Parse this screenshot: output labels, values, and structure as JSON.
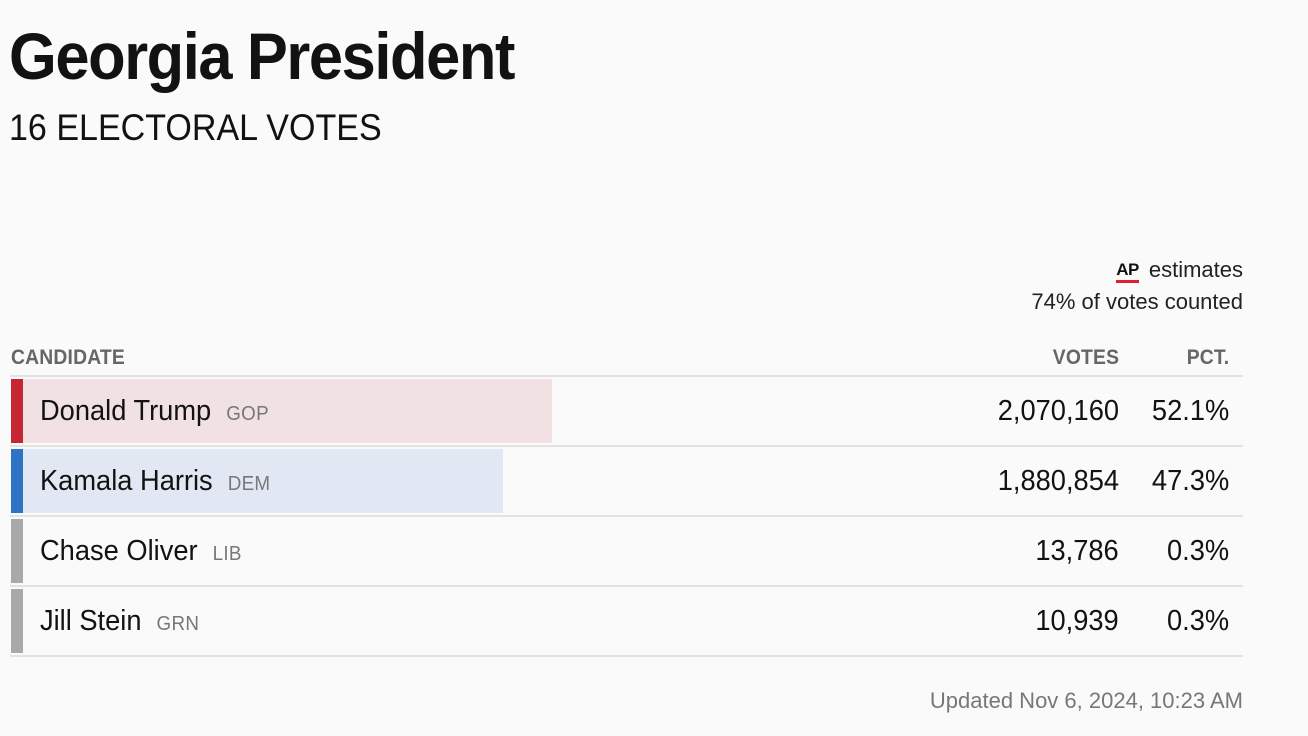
{
  "header": {
    "title": "Georgia President",
    "subtitle": "16 ELECTORAL VOTES"
  },
  "source": {
    "logo": "AP",
    "estimates_label": "estimates",
    "votes_counted": "74% of votes counted"
  },
  "table": {
    "columns": {
      "candidate": "CANDIDATE",
      "votes": "VOTES",
      "pct": "PCT."
    },
    "rows": [
      {
        "name": "Donald Trump",
        "party": "GOP",
        "votes": "2,070,160",
        "pct": "52.1%",
        "share": 0.521,
        "party_color": "#c42634",
        "bar_color": "#f2e1e2"
      },
      {
        "name": "Kamala Harris",
        "party": "DEM",
        "votes": "1,880,854",
        "pct": "47.3%",
        "share": 0.473,
        "party_color": "#2f73c4",
        "bar_color": "#e1e8f3"
      },
      {
        "name": "Chase Oliver",
        "party": "LIB",
        "votes": "13,786",
        "pct": "0.3%",
        "share": 0.003,
        "party_color": "#a9a9a9",
        "bar_color": "#ececec"
      },
      {
        "name": "Jill Stein",
        "party": "GRN",
        "votes": "10,939",
        "pct": "0.3%",
        "share": 0.003,
        "party_color": "#a9a9a9",
        "bar_color": "#ececec"
      }
    ]
  },
  "footer": {
    "updated": "Updated Nov 6, 2024, 10:23 AM"
  }
}
